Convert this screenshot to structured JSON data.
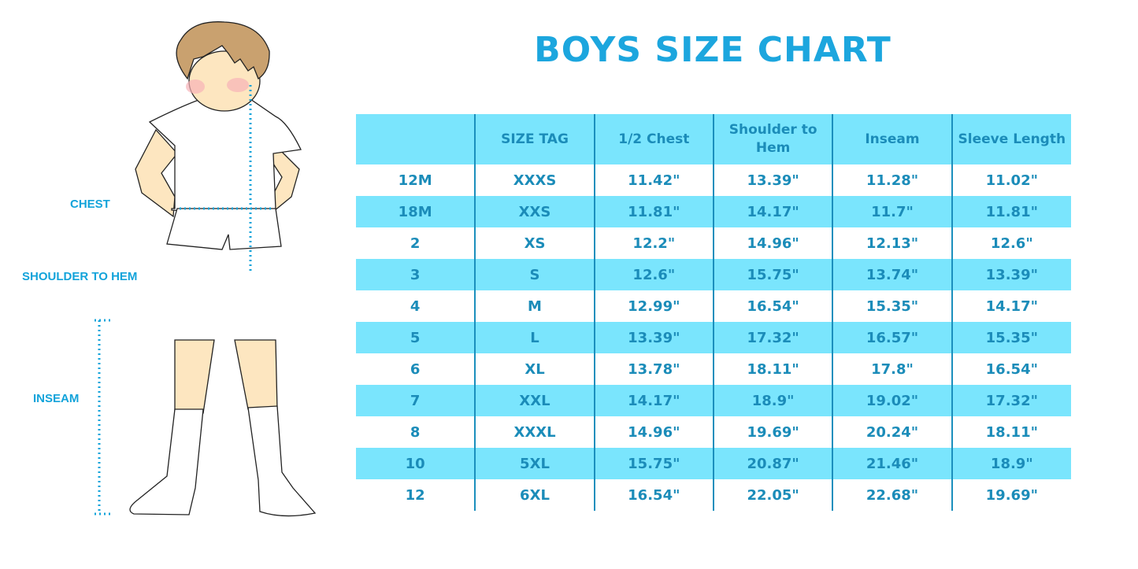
{
  "title": "BOYS SIZE CHART",
  "colors": {
    "accent": "#1ca6de",
    "stripe": "#7ae5fd",
    "table_text": "#1b8cb9"
  },
  "figure_labels": {
    "chest": "CHEST",
    "shoulder_to_hem": "SHOULDER TO HEM",
    "inseam": "INSEAM"
  },
  "table": {
    "headers": [
      "",
      "SIZE TAG",
      "1/2 Chest",
      "Shoulder to Hem",
      "Inseam",
      "Sleeve Length"
    ],
    "rows": [
      [
        "12M",
        "XXXS",
        "11.42\"",
        "13.39\"",
        "11.28\"",
        "11.02\""
      ],
      [
        "18M",
        "XXS",
        "11.81\"",
        "14.17\"",
        "11.7\"",
        "11.81\""
      ],
      [
        "2",
        "XS",
        "12.2\"",
        "14.96\"",
        "12.13\"",
        "12.6\""
      ],
      [
        "3",
        "S",
        "12.6\"",
        "15.75\"",
        "13.74\"",
        "13.39\""
      ],
      [
        "4",
        "M",
        "12.99\"",
        "16.54\"",
        "15.35\"",
        "14.17\""
      ],
      [
        "5",
        "L",
        "13.39\"",
        "17.32\"",
        "16.57\"",
        "15.35\""
      ],
      [
        "6",
        "XL",
        "13.78\"",
        "18.11\"",
        "17.8\"",
        "16.54\""
      ],
      [
        "7",
        "XXL",
        "14.17\"",
        "18.9\"",
        "19.02\"",
        "17.32\""
      ],
      [
        "8",
        "XXXL",
        "14.96\"",
        "19.69\"",
        "20.24\"",
        "18.11\""
      ],
      [
        "10",
        "5XL",
        "15.75\"",
        "20.87\"",
        "21.46\"",
        "18.9\""
      ],
      [
        "12",
        "6XL",
        "16.54\"",
        "22.05\"",
        "22.68\"",
        "19.69\""
      ]
    ]
  }
}
